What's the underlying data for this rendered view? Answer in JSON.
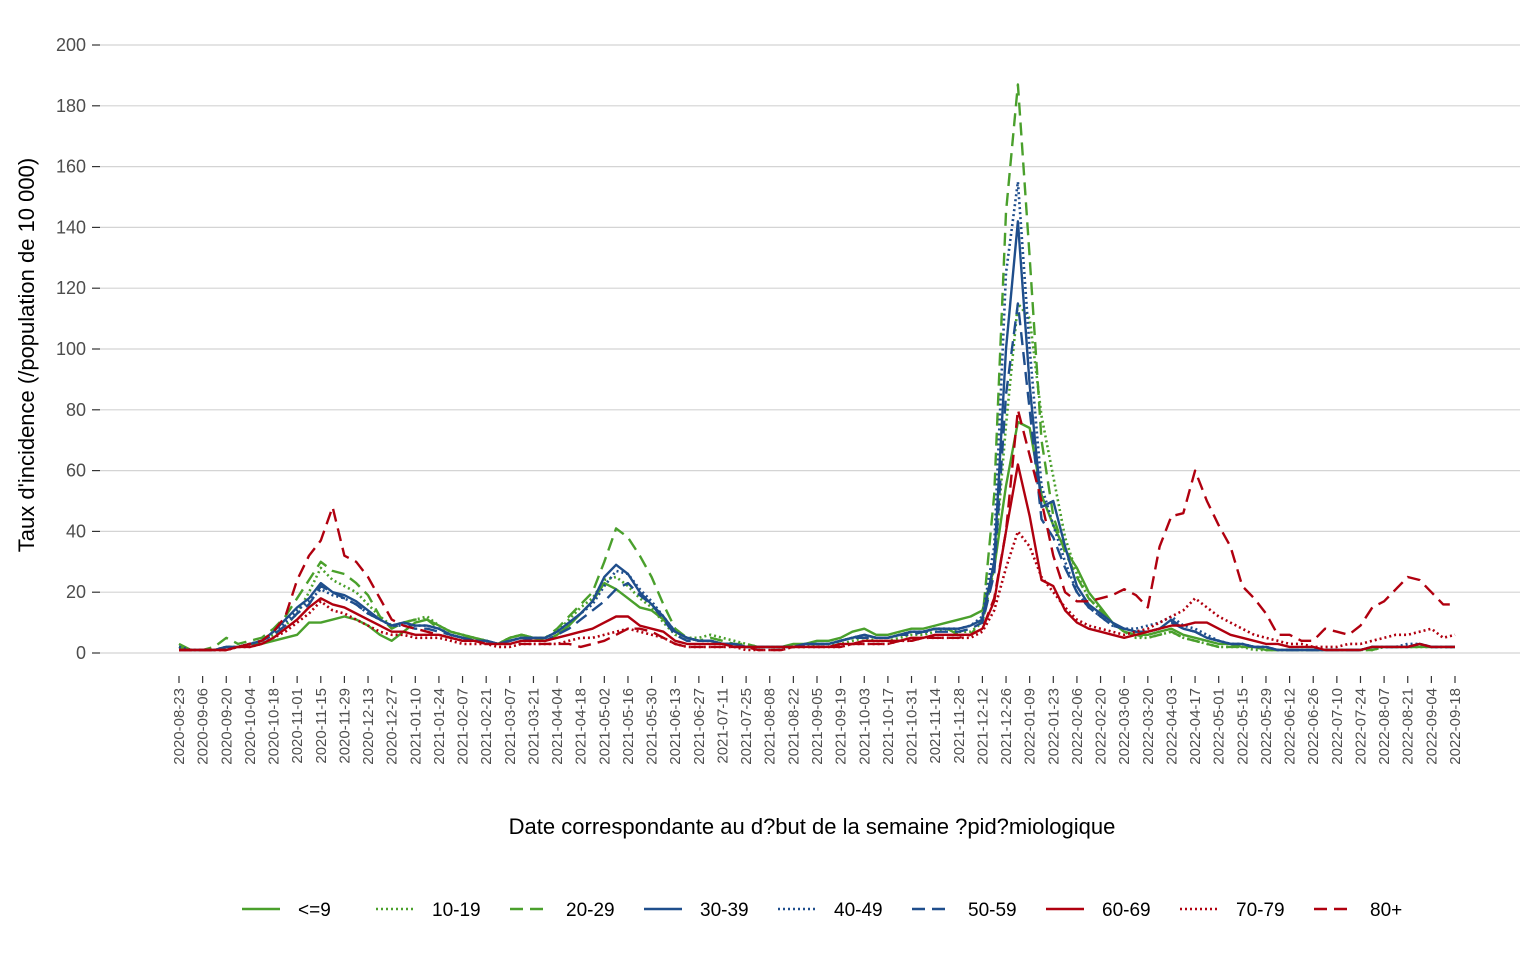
{
  "chart_data": {
    "type": "line",
    "title": "",
    "xlabel": "Date correspondante au d?but de la semaine ?pid?miologique",
    "ylabel": "Taux d'incidence (/population de 10 000)",
    "ylim": [
      0,
      200
    ],
    "yticks": [
      0,
      20,
      40,
      60,
      80,
      100,
      120,
      140,
      160,
      180,
      200
    ],
    "grid": "horizontal",
    "legend_position": "bottom",
    "x": [
      "2020-08-23",
      "2020-08-30",
      "2020-09-06",
      "2020-09-13",
      "2020-09-20",
      "2020-09-27",
      "2020-10-04",
      "2020-10-11",
      "2020-10-18",
      "2020-10-25",
      "2020-11-01",
      "2020-11-08",
      "2020-11-15",
      "2020-11-22",
      "2020-11-29",
      "2020-12-06",
      "2020-12-13",
      "2020-12-20",
      "2020-12-27",
      "2021-01-03",
      "2021-01-10",
      "2021-01-17",
      "2021-01-24",
      "2021-01-31",
      "2021-02-07",
      "2021-02-14",
      "2021-02-21",
      "2021-02-28",
      "2021-03-07",
      "2021-03-14",
      "2021-03-21",
      "2021-03-28",
      "2021-04-04",
      "2021-04-11",
      "2021-04-18",
      "2021-04-25",
      "2021-05-02",
      "2021-05-09",
      "2021-05-16",
      "2021-05-23",
      "2021-05-30",
      "2021-06-06",
      "2021-06-13",
      "2021-06-20",
      "2021-06-27",
      "2021-07-04",
      "2021-07-11",
      "2021-07-18",
      "2021-07-25",
      "2021-08-01",
      "2021-08-08",
      "2021-08-15",
      "2021-08-22",
      "2021-08-29",
      "2021-09-05",
      "2021-09-12",
      "2021-09-19",
      "2021-09-26",
      "2021-10-03",
      "2021-10-10",
      "2021-10-17",
      "2021-10-24",
      "2021-10-31",
      "2021-11-07",
      "2021-11-14",
      "2021-11-21",
      "2021-11-28",
      "2021-12-05",
      "2021-12-12",
      "2021-12-19",
      "2021-12-26",
      "2022-01-02",
      "2022-01-09",
      "2022-01-16",
      "2022-01-23",
      "2022-01-30",
      "2022-02-06",
      "2022-02-13",
      "2022-02-20",
      "2022-02-27",
      "2022-03-06",
      "2022-03-13",
      "2022-03-20",
      "2022-03-27",
      "2022-04-03",
      "2022-04-10",
      "2022-04-17",
      "2022-04-24",
      "2022-05-01",
      "2022-05-08",
      "2022-05-15",
      "2022-05-22",
      "2022-05-29",
      "2022-06-05",
      "2022-06-12",
      "2022-06-19",
      "2022-06-26",
      "2022-07-03",
      "2022-07-10",
      "2022-07-17",
      "2022-07-24",
      "2022-07-31",
      "2022-08-07",
      "2022-08-14",
      "2022-08-21",
      "2022-08-28",
      "2022-09-04",
      "2022-09-11",
      "2022-09-18"
    ],
    "x_tick_labels": [
      "2020-08-23",
      "2020-09-06",
      "2020-09-20",
      "2020-10-04",
      "2020-10-18",
      "2020-11-01",
      "2020-11-15",
      "2020-11-29",
      "2020-12-13",
      "2020-12-27",
      "2021-01-10",
      "2021-01-24",
      "2021-02-07",
      "2021-02-21",
      "2021-03-07",
      "2021-03-21",
      "2021-04-04",
      "2021-04-18",
      "2021-05-02",
      "2021-05-16",
      "2021-05-30",
      "2021-06-13",
      "2021-06-27",
      "2021-07-11",
      "2021-07-25",
      "2021-08-08",
      "2021-08-22",
      "2021-09-05",
      "2021-09-19",
      "2021-10-03",
      "2021-10-17",
      "2021-10-31",
      "2021-11-14",
      "2021-11-28",
      "2021-12-12",
      "2021-12-26",
      "2022-01-09",
      "2022-01-23",
      "2022-02-06",
      "2022-02-20",
      "2022-03-06",
      "2022-03-20",
      "2022-04-03",
      "2022-04-17",
      "2022-05-01",
      "2022-05-15",
      "2022-05-29",
      "2022-06-12",
      "2022-06-26",
      "2022-07-10",
      "2022-07-24",
      "2022-08-07",
      "2022-08-21",
      "2022-09-04",
      "2022-09-18"
    ],
    "series": [
      {
        "name": "<=9",
        "color": "#4aa02c",
        "dash": "solid",
        "values": [
          3,
          1,
          1,
          1,
          2,
          2,
          3,
          3,
          4,
          5,
          6,
          10,
          10,
          11,
          12,
          11,
          9,
          6,
          4,
          7,
          10,
          11,
          9,
          7,
          6,
          5,
          4,
          3,
          5,
          6,
          5,
          4,
          6,
          9,
          13,
          17,
          23,
          21,
          18,
          15,
          14,
          11,
          7,
          5,
          4,
          4,
          3,
          3,
          2,
          2,
          2,
          2,
          3,
          3,
          4,
          4,
          5,
          7,
          8,
          6,
          6,
          7,
          8,
          8,
          9,
          10,
          11,
          12,
          14,
          28,
          55,
          76,
          74,
          52,
          42,
          34,
          28,
          20,
          15,
          10,
          7,
          6,
          6,
          7,
          8,
          6,
          5,
          4,
          3,
          3,
          2,
          2,
          1,
          1,
          1,
          1,
          1,
          1,
          1,
          1,
          1,
          2,
          2,
          2,
          2,
          2,
          2,
          2,
          2
        ]
      },
      {
        "name": "10-19",
        "color": "#4aa02c",
        "dash": "dot",
        "values": [
          2,
          1,
          1,
          1,
          1,
          2,
          3,
          4,
          6,
          9,
          13,
          20,
          28,
          24,
          22,
          20,
          16,
          12,
          9,
          10,
          11,
          12,
          9,
          7,
          6,
          5,
          4,
          3,
          5,
          6,
          5,
          5,
          7,
          11,
          15,
          18,
          24,
          25,
          22,
          18,
          15,
          10,
          6,
          5,
          5,
          6,
          5,
          4,
          3,
          2,
          2,
          2,
          2,
          2,
          3,
          3,
          3,
          4,
          5,
          4,
          4,
          5,
          6,
          6,
          7,
          8,
          7,
          7,
          10,
          28,
          75,
          115,
          110,
          78,
          58,
          38,
          26,
          18,
          14,
          10,
          7,
          5,
          5,
          6,
          7,
          5,
          4,
          3,
          2,
          2,
          2,
          1,
          1,
          1,
          1,
          1,
          1,
          1,
          1,
          1,
          1,
          1,
          2,
          2,
          2,
          2,
          2,
          2,
          2
        ]
      },
      {
        "name": "20-29",
        "color": "#4aa02c",
        "dash": "dash",
        "values": [
          2,
          1,
          1,
          2,
          5,
          3,
          4,
          5,
          8,
          12,
          18,
          24,
          30,
          27,
          26,
          23,
          19,
          12,
          8,
          10,
          11,
          11,
          8,
          6,
          5,
          5,
          4,
          3,
          5,
          6,
          5,
          5,
          8,
          12,
          16,
          20,
          30,
          41,
          38,
          32,
          25,
          16,
          8,
          5,
          4,
          5,
          4,
          3,
          3,
          2,
          2,
          2,
          2,
          3,
          3,
          3,
          4,
          5,
          6,
          5,
          5,
          6,
          7,
          7,
          8,
          8,
          6,
          6,
          11,
          52,
          145,
          187,
          130,
          70,
          45,
          33,
          25,
          18,
          14,
          10,
          7,
          6,
          5,
          6,
          7,
          5,
          4,
          3,
          2,
          2,
          2,
          2,
          1,
          1,
          1,
          1,
          1,
          1,
          1,
          1,
          1,
          1,
          2,
          2,
          2,
          2,
          2,
          2,
          2
        ]
      },
      {
        "name": "30-39",
        "color": "#1f4e8c",
        "dash": "solid",
        "values": [
          1,
          1,
          1,
          1,
          2,
          2,
          3,
          4,
          7,
          11,
          15,
          18,
          23,
          20,
          19,
          17,
          14,
          11,
          9,
          10,
          9,
          9,
          8,
          6,
          5,
          4,
          4,
          3,
          4,
          5,
          5,
          5,
          7,
          10,
          13,
          17,
          25,
          29,
          26,
          20,
          16,
          12,
          7,
          5,
          4,
          4,
          3,
          3,
          2,
          2,
          2,
          2,
          2,
          3,
          3,
          3,
          4,
          5,
          6,
          5,
          5,
          6,
          7,
          7,
          8,
          8,
          8,
          9,
          11,
          30,
          100,
          142,
          88,
          48,
          50,
          35,
          22,
          16,
          13,
          10,
          8,
          7,
          7,
          8,
          11,
          8,
          7,
          5,
          4,
          3,
          3,
          2,
          2,
          1,
          1,
          1,
          1,
          1,
          1,
          1,
          1,
          2,
          2,
          2,
          2,
          3,
          2,
          2,
          2
        ]
      },
      {
        "name": "40-49",
        "color": "#1f4e8c",
        "dash": "dot",
        "values": [
          2,
          1,
          1,
          1,
          2,
          2,
          3,
          4,
          7,
          10,
          14,
          17,
          21,
          19,
          18,
          16,
          13,
          11,
          9,
          9,
          9,
          9,
          8,
          6,
          5,
          4,
          4,
          3,
          4,
          5,
          5,
          5,
          7,
          10,
          13,
          16,
          22,
          27,
          26,
          21,
          17,
          12,
          7,
          5,
          4,
          4,
          3,
          3,
          2,
          2,
          2,
          2,
          2,
          3,
          3,
          3,
          4,
          5,
          6,
          5,
          5,
          6,
          7,
          7,
          8,
          8,
          8,
          9,
          12,
          35,
          125,
          155,
          100,
          55,
          42,
          30,
          20,
          15,
          12,
          9,
          8,
          8,
          9,
          10,
          12,
          9,
          8,
          6,
          4,
          3,
          3,
          2,
          2,
          1,
          1,
          1,
          1,
          1,
          1,
          1,
          1,
          2,
          2,
          2,
          3,
          3,
          2,
          2,
          2
        ]
      },
      {
        "name": "50-59",
        "color": "#1f4e8c",
        "dash": "dash",
        "values": [
          1,
          1,
          1,
          1,
          2,
          2,
          3,
          4,
          6,
          9,
          13,
          16,
          22,
          20,
          18,
          16,
          13,
          11,
          9,
          9,
          8,
          8,
          7,
          6,
          5,
          4,
          4,
          3,
          4,
          5,
          4,
          4,
          6,
          8,
          11,
          14,
          17,
          21,
          23,
          19,
          16,
          11,
          6,
          4,
          4,
          4,
          3,
          3,
          2,
          2,
          2,
          2,
          2,
          3,
          3,
          3,
          4,
          5,
          5,
          5,
          5,
          6,
          6,
          7,
          7,
          7,
          7,
          8,
          10,
          26,
          85,
          115,
          80,
          44,
          38,
          28,
          20,
          15,
          12,
          9,
          8,
          7,
          7,
          8,
          10,
          8,
          7,
          5,
          4,
          3,
          3,
          2,
          2,
          1,
          1,
          1,
          1,
          1,
          1,
          1,
          1,
          2,
          2,
          2,
          2,
          3,
          2,
          2,
          2
        ]
      },
      {
        "name": "60-69",
        "color": "#b0000f",
        "dash": "solid",
        "values": [
          1,
          1,
          1,
          1,
          1,
          2,
          2,
          3,
          5,
          8,
          11,
          15,
          18,
          16,
          15,
          13,
          11,
          9,
          7,
          7,
          6,
          6,
          6,
          5,
          4,
          4,
          3,
          3,
          3,
          4,
          4,
          4,
          5,
          6,
          7,
          8,
          10,
          12,
          12,
          9,
          8,
          7,
          4,
          3,
          3,
          3,
          3,
          2,
          2,
          2,
          2,
          2,
          2,
          2,
          2,
          2,
          3,
          3,
          4,
          4,
          4,
          4,
          5,
          5,
          6,
          6,
          6,
          6,
          8,
          17,
          40,
          62,
          45,
          24,
          22,
          14,
          10,
          8,
          7,
          6,
          5,
          6,
          7,
          8,
          9,
          9,
          10,
          10,
          8,
          6,
          5,
          4,
          3,
          3,
          2,
          2,
          2,
          1,
          1,
          1,
          1,
          2,
          2,
          2,
          2,
          3,
          2,
          2,
          2
        ]
      },
      {
        "name": "70-79",
        "color": "#b0000f",
        "dash": "dot",
        "values": [
          1,
          1,
          1,
          1,
          1,
          2,
          2,
          3,
          5,
          7,
          10,
          13,
          17,
          14,
          13,
          11,
          9,
          7,
          6,
          6,
          5,
          5,
          5,
          4,
          3,
          3,
          3,
          2,
          2,
          3,
          3,
          3,
          3,
          4,
          5,
          5,
          6,
          7,
          8,
          7,
          6,
          5,
          3,
          2,
          2,
          2,
          2,
          2,
          1,
          1,
          1,
          1,
          2,
          2,
          2,
          2,
          2,
          3,
          3,
          3,
          3,
          4,
          4,
          5,
          5,
          5,
          5,
          5,
          7,
          14,
          28,
          40,
          35,
          25,
          20,
          15,
          11,
          9,
          8,
          7,
          6,
          7,
          8,
          10,
          12,
          14,
          18,
          15,
          12,
          10,
          8,
          6,
          5,
          4,
          3,
          3,
          2,
          2,
          2,
          3,
          3,
          4,
          5,
          6,
          6,
          7,
          8,
          5,
          6
        ]
      },
      {
        "name": "80+",
        "color": "#b0000f",
        "dash": "dash",
        "values": [
          1,
          1,
          1,
          1,
          1,
          2,
          3,
          4,
          7,
          12,
          24,
          32,
          37,
          48,
          32,
          30,
          25,
          18,
          11,
          9,
          8,
          7,
          6,
          5,
          4,
          4,
          3,
          3,
          3,
          3,
          3,
          3,
          3,
          3,
          2,
          3,
          4,
          6,
          8,
          8,
          7,
          5,
          3,
          2,
          2,
          2,
          2,
          2,
          2,
          1,
          1,
          1,
          2,
          2,
          2,
          2,
          2,
          3,
          3,
          3,
          3,
          4,
          4,
          5,
          5,
          5,
          5,
          6,
          8,
          18,
          40,
          80,
          65,
          50,
          32,
          20,
          17,
          17,
          18,
          19,
          21,
          19,
          15,
          35,
          45,
          46,
          60,
          50,
          42,
          35,
          22,
          18,
          13,
          6,
          6,
          4,
          4,
          8,
          7,
          6,
          9,
          15,
          17,
          21,
          25,
          24,
          20,
          16,
          16
        ]
      }
    ]
  }
}
